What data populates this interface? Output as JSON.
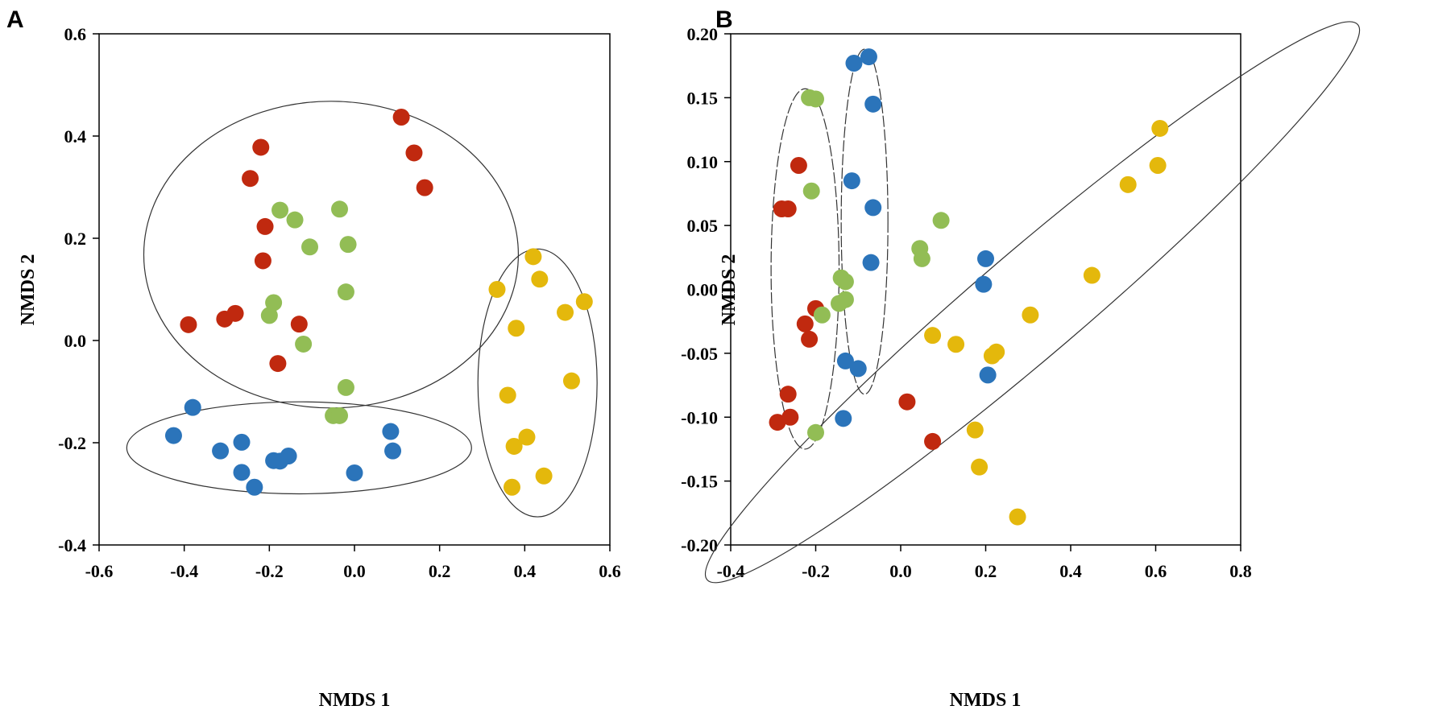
{
  "colors": {
    "red": "#c0290f",
    "green": "#92bd55",
    "blue": "#2b74ba",
    "yellow": "#e4b80c"
  },
  "chart_data": [
    {
      "panel": "A",
      "type": "scatter",
      "xlabel": "NMDS 1",
      "ylabel": "NMDS 2",
      "xlim": [
        -0.6,
        0.6
      ],
      "ylim": [
        -0.4,
        0.6
      ],
      "xticks": [
        -0.6,
        -0.4,
        -0.2,
        0.0,
        0.2,
        0.4,
        0.6
      ],
      "yticks": [
        -0.4,
        -0.2,
        0.0,
        0.2,
        0.4,
        0.6
      ],
      "xtick_labels": [
        "-0.6",
        "-0.4",
        "-0.2",
        "0.0",
        "0.2",
        "0.4",
        "0.6"
      ],
      "ytick_labels": [
        "-0.4",
        "-0.2",
        "0.0",
        "0.2",
        "0.4",
        "0.6"
      ],
      "series": [
        {
          "name": "red",
          "color": "red",
          "points": [
            [
              0.11,
              0.437
            ],
            [
              0.14,
              0.367
            ],
            [
              0.165,
              0.299
            ],
            [
              -0.22,
              0.378
            ],
            [
              -0.245,
              0.317
            ],
            [
              -0.21,
              0.223
            ],
            [
              -0.215,
              0.156
            ],
            [
              -0.39,
              0.031
            ],
            [
              -0.305,
              0.042
            ],
            [
              -0.28,
              0.053
            ],
            [
              -0.13,
              0.032
            ],
            [
              -0.18,
              -0.045
            ]
          ]
        },
        {
          "name": "green",
          "color": "green",
          "points": [
            [
              -0.175,
              0.255
            ],
            [
              -0.14,
              0.236
            ],
            [
              -0.035,
              0.257
            ],
            [
              -0.105,
              0.183
            ],
            [
              -0.015,
              0.188
            ],
            [
              -0.02,
              0.095
            ],
            [
              -0.19,
              0.074
            ],
            [
              -0.2,
              0.049
            ],
            [
              -0.12,
              -0.007
            ],
            [
              -0.02,
              -0.092
            ],
            [
              -0.05,
              -0.147
            ],
            [
              -0.035,
              -0.147
            ]
          ]
        },
        {
          "name": "blue",
          "color": "blue",
          "points": [
            [
              -0.38,
              -0.131
            ],
            [
              -0.425,
              -0.186
            ],
            [
              -0.315,
              -0.216
            ],
            [
              -0.265,
              -0.199
            ],
            [
              -0.265,
              -0.258
            ],
            [
              -0.235,
              -0.287
            ],
            [
              -0.19,
              -0.235
            ],
            [
              -0.175,
              -0.236
            ],
            [
              -0.155,
              -0.226
            ],
            [
              0.085,
              -0.178
            ],
            [
              0.09,
              -0.216
            ],
            [
              0.0,
              -0.259
            ]
          ]
        },
        {
          "name": "yellow",
          "color": "yellow",
          "points": [
            [
              0.335,
              0.1
            ],
            [
              0.42,
              0.164
            ],
            [
              0.435,
              0.12
            ],
            [
              0.38,
              0.024
            ],
            [
              0.495,
              0.055
            ],
            [
              0.54,
              0.076
            ],
            [
              0.51,
              -0.079
            ],
            [
              0.36,
              -0.107
            ],
            [
              0.375,
              -0.207
            ],
            [
              0.405,
              -0.189
            ],
            [
              0.445,
              -0.265
            ],
            [
              0.37,
              -0.287
            ]
          ]
        }
      ],
      "ellipses": [
        {
          "cx": -0.055,
          "cy": 0.168,
          "rx": 0.44,
          "ry": 0.3,
          "rotation": 0,
          "style": "solid"
        },
        {
          "cx": -0.13,
          "cy": -0.21,
          "rx": 0.405,
          "ry": 0.09,
          "rotation": 0,
          "style": "solid"
        },
        {
          "cx": 0.43,
          "cy": -0.083,
          "rx": 0.14,
          "ry": 0.262,
          "rotation": 0,
          "style": "thin"
        }
      ]
    },
    {
      "panel": "B",
      "type": "scatter",
      "xlabel": "NMDS 1",
      "ylabel": "NMDS 2",
      "xlim": [
        -0.4,
        0.8
      ],
      "ylim": [
        -0.2,
        0.2
      ],
      "xticks": [
        -0.4,
        -0.2,
        0.0,
        0.2,
        0.4,
        0.6,
        0.8
      ],
      "yticks": [
        -0.2,
        -0.15,
        -0.1,
        -0.05,
        0.0,
        0.05,
        0.1,
        0.15,
        0.2
      ],
      "xtick_labels": [
        "-0.4",
        "-0.2",
        "0.0",
        "0.2",
        "0.4",
        "0.6",
        "0.8"
      ],
      "ytick_labels": [
        "-0.20",
        "-0.15",
        "-0.10",
        "-0.05",
        "0.00",
        "0.05",
        "0.10",
        "0.15",
        "0.20"
      ],
      "series": [
        {
          "name": "red",
          "color": "red",
          "points": [
            [
              -0.24,
              0.097
            ],
            [
              -0.28,
              0.063
            ],
            [
              -0.265,
              0.063
            ],
            [
              -0.2,
              -0.015
            ],
            [
              -0.225,
              -0.027
            ],
            [
              -0.215,
              -0.039
            ],
            [
              -0.265,
              -0.082
            ],
            [
              -0.29,
              -0.104
            ],
            [
              -0.26,
              -0.1
            ],
            [
              0.015,
              -0.088
            ],
            [
              0.075,
              -0.119
            ]
          ]
        },
        {
          "name": "green",
          "color": "green",
          "points": [
            [
              -0.215,
              0.15
            ],
            [
              -0.2,
              0.149
            ],
            [
              -0.21,
              0.077
            ],
            [
              0.095,
              0.054
            ],
            [
              0.045,
              0.032
            ],
            [
              0.05,
              0.024
            ],
            [
              -0.14,
              0.009
            ],
            [
              -0.13,
              0.006
            ],
            [
              -0.145,
              -0.011
            ],
            [
              -0.13,
              -0.008
            ],
            [
              -0.185,
              -0.02
            ],
            [
              -0.2,
              -0.112
            ]
          ]
        },
        {
          "name": "blue",
          "color": "blue",
          "points": [
            [
              -0.11,
              0.177
            ],
            [
              -0.075,
              0.182
            ],
            [
              -0.065,
              0.145
            ],
            [
              -0.115,
              0.085
            ],
            [
              -0.065,
              0.064
            ],
            [
              -0.07,
              0.021
            ],
            [
              0.2,
              0.024
            ],
            [
              0.195,
              0.004
            ],
            [
              -0.13,
              -0.056
            ],
            [
              -0.1,
              -0.062
            ],
            [
              0.205,
              -0.067
            ],
            [
              -0.135,
              -0.101
            ]
          ]
        },
        {
          "name": "yellow",
          "color": "yellow",
          "points": [
            [
              0.61,
              0.126
            ],
            [
              0.605,
              0.097
            ],
            [
              0.535,
              0.082
            ],
            [
              0.45,
              0.011
            ],
            [
              0.305,
              -0.02
            ],
            [
              0.075,
              -0.036
            ],
            [
              0.13,
              -0.043
            ],
            [
              0.225,
              -0.049
            ],
            [
              0.215,
              -0.052
            ],
            [
              0.175,
              -0.11
            ],
            [
              0.185,
              -0.139
            ],
            [
              0.275,
              -0.178
            ]
          ]
        }
      ],
      "ellipses": [
        {
          "cx": -0.225,
          "cy": 0.016,
          "rx": 0.08,
          "ry": 0.141,
          "rotation": 0,
          "style": "dashed"
        },
        {
          "cx": -0.085,
          "cy": 0.053,
          "rx": 0.055,
          "ry": 0.135,
          "rotation": 0,
          "style": "dashed"
        },
        {
          "cx": 0.31,
          "cy": -0.01,
          "rx": 0.48,
          "ry": 0.052,
          "rotation": 40.5,
          "style": "solid"
        }
      ]
    }
  ]
}
